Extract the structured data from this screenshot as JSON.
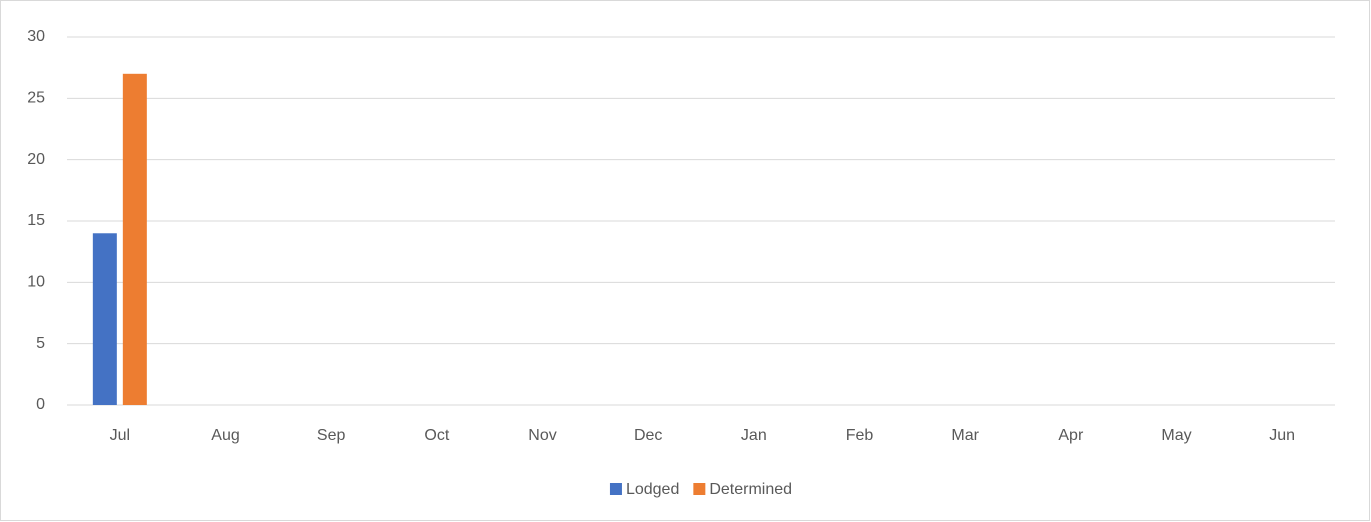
{
  "chart_data": {
    "type": "bar",
    "categories": [
      "Jul",
      "Aug",
      "Sep",
      "Oct",
      "Nov",
      "Dec",
      "Jan",
      "Feb",
      "Mar",
      "Apr",
      "May",
      "Jun"
    ],
    "series": [
      {
        "name": "Lodged",
        "color": "#4472c4",
        "values": [
          14,
          null,
          null,
          null,
          null,
          null,
          null,
          null,
          null,
          null,
          null,
          null
        ]
      },
      {
        "name": "Determined",
        "color": "#ed7d31",
        "values": [
          27,
          null,
          null,
          null,
          null,
          null,
          null,
          null,
          null,
          null,
          null,
          null
        ]
      }
    ],
    "ylim": [
      0,
      30
    ],
    "yticks": [
      0,
      5,
      10,
      15,
      20,
      25,
      30
    ],
    "grid": true,
    "legend": "bottom"
  }
}
